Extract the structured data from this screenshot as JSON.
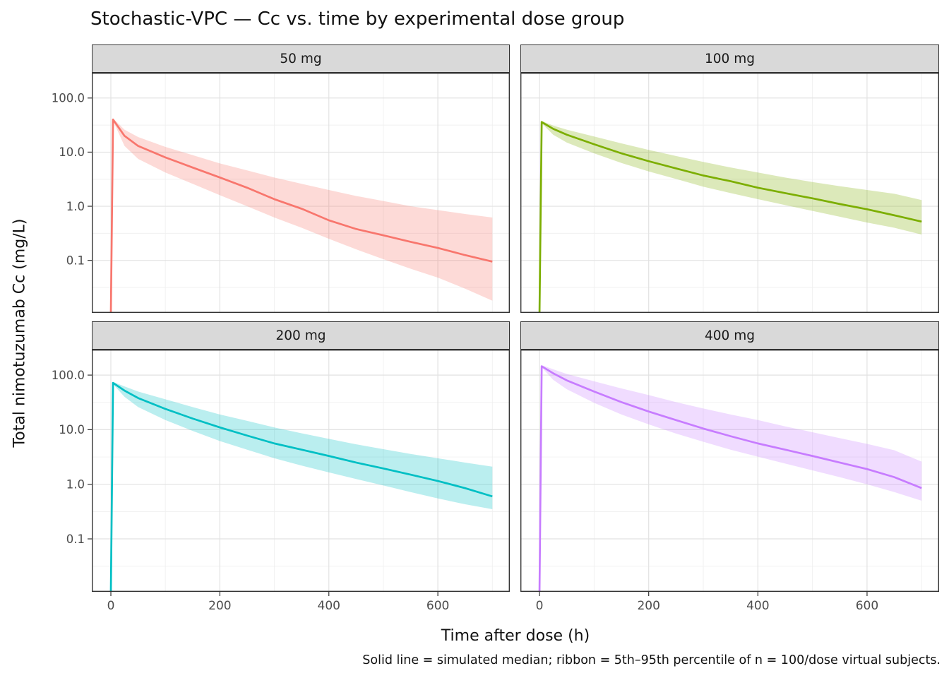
{
  "title": "Stochastic-VPC — Cc vs. time by experimental dose group",
  "caption": "Solid line = simulated median; ribbon = 5th–95th percentile of n = 100/dose virtual subjects.",
  "x_axis": {
    "label": "Time after dose (h)",
    "tick_values": [
      0,
      200,
      400,
      600
    ],
    "tick_labels": [
      "0",
      "200",
      "400",
      "600"
    ],
    "minor_values": [
      100,
      300,
      500,
      700
    ],
    "domain": [
      -35,
      732
    ]
  },
  "y_axis": {
    "label": "Total nimotuzumab Cc (mg/L)",
    "tick_values": [
      100,
      10,
      1,
      0.1
    ],
    "tick_labels": [
      "100.0",
      "10.0",
      "1.0",
      "0.1"
    ],
    "minor_values": [
      31.6,
      3.16,
      0.316,
      0.0316
    ],
    "domain_log10": [
      -1.97,
      2.467
    ],
    "scale": "log10"
  },
  "theme": {
    "strip_bg": "#d9d9d9",
    "strip_border": "#333333",
    "panel_bg": "#ffffff",
    "panel_border": "#333333",
    "grid_major": "#e2e2e2",
    "grid_minor": "#f0f0f0",
    "tick_color": "#333333",
    "tick_label_color": "#4d4d4d",
    "ribbon_opacity": 0.27
  },
  "chart_data": [
    {
      "type": "line",
      "facet": "50 mg",
      "color": "#F8766D",
      "legend": {
        "line": "simulated median",
        "ribbon": "5th-95th percentile"
      },
      "x": [
        0,
        4,
        25,
        50,
        100,
        150,
        200,
        250,
        300,
        350,
        400,
        450,
        500,
        550,
        600,
        650,
        700
      ],
      "median": [
        0.01,
        40,
        20,
        13,
        8,
        5.2,
        3.4,
        2.2,
        1.35,
        0.9,
        0.55,
        0.38,
        0.29,
        0.22,
        0.17,
        0.125,
        0.095
      ],
      "p5": [
        0.01,
        38,
        13,
        7.5,
        4.2,
        2.6,
        1.6,
        1.0,
        0.62,
        0.4,
        0.25,
        0.16,
        0.105,
        0.07,
        0.048,
        0.03,
        0.018
      ],
      "p95": [
        0.01,
        42,
        26,
        19,
        12.5,
        8.8,
        6.2,
        4.6,
        3.4,
        2.6,
        2.0,
        1.55,
        1.25,
        1.0,
        0.85,
        0.72,
        0.62
      ]
    },
    {
      "type": "line",
      "facet": "100 mg",
      "color": "#7CAE00",
      "legend": {
        "line": "simulated median",
        "ribbon": "5th-95th percentile"
      },
      "x": [
        0,
        4,
        25,
        50,
        100,
        150,
        200,
        250,
        300,
        350,
        400,
        450,
        500,
        550,
        600,
        650,
        700
      ],
      "median": [
        0.01,
        36,
        27,
        21,
        14,
        9.5,
        6.8,
        5.0,
        3.7,
        2.9,
        2.2,
        1.75,
        1.4,
        1.1,
        0.88,
        0.68,
        0.52
      ],
      "p5": [
        0.01,
        34,
        21,
        15,
        9.5,
        6.3,
        4.4,
        3.2,
        2.3,
        1.75,
        1.35,
        1.05,
        0.82,
        0.64,
        0.5,
        0.4,
        0.3
      ],
      "p95": [
        0.01,
        37.5,
        31,
        26,
        19.5,
        14.5,
        11,
        8.5,
        6.6,
        5.2,
        4.2,
        3.4,
        2.8,
        2.35,
        2.0,
        1.7,
        1.3
      ]
    },
    {
      "type": "line",
      "facet": "200 mg",
      "color": "#00BFC4",
      "legend": {
        "line": "simulated median",
        "ribbon": "5th-95th percentile"
      },
      "x": [
        0,
        4,
        25,
        50,
        100,
        150,
        200,
        250,
        300,
        350,
        400,
        450,
        500,
        550,
        600,
        650,
        700
      ],
      "median": [
        0.01,
        72,
        52,
        38,
        24,
        16,
        11,
        7.8,
        5.6,
        4.3,
        3.3,
        2.5,
        1.95,
        1.5,
        1.15,
        0.85,
        0.6
      ],
      "p5": [
        0.01,
        68,
        40,
        26,
        15,
        9.5,
        6.2,
        4.3,
        3.0,
        2.2,
        1.65,
        1.25,
        0.95,
        0.72,
        0.55,
        0.43,
        0.35
      ],
      "p95": [
        0.01,
        75,
        62,
        50,
        36,
        26,
        19,
        14.5,
        11,
        8.6,
        6.8,
        5.4,
        4.4,
        3.6,
        3.0,
        2.5,
        2.1
      ]
    },
    {
      "type": "line",
      "facet": "400 mg",
      "color": "#C77CFF",
      "legend": {
        "line": "simulated median",
        "ribbon": "5th-95th percentile"
      },
      "x": [
        0,
        4,
        25,
        50,
        100,
        150,
        200,
        250,
        300,
        350,
        400,
        450,
        500,
        550,
        600,
        650,
        700
      ],
      "median": [
        0.01,
        145,
        108,
        80,
        50,
        32,
        21.5,
        15,
        10.5,
        7.6,
        5.6,
        4.3,
        3.3,
        2.5,
        1.9,
        1.35,
        0.85
      ],
      "p5": [
        0.01,
        138,
        82,
        55,
        31,
        19,
        12.5,
        8.5,
        6.0,
        4.3,
        3.2,
        2.4,
        1.8,
        1.35,
        1.0,
        0.72,
        0.5
      ],
      "p95": [
        0.01,
        152,
        128,
        105,
        77,
        57,
        43,
        32,
        24.5,
        19,
        15,
        11.5,
        9.0,
        7.0,
        5.5,
        4.2,
        2.6
      ]
    }
  ]
}
